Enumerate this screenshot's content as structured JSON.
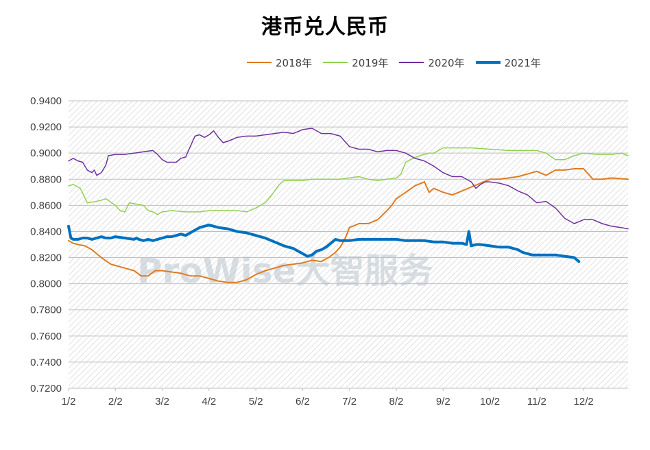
{
  "chart_data": {
    "type": "line",
    "title": "港币兑人民币",
    "xlabel": "",
    "ylabel": "",
    "ylim": [
      0.72,
      0.94
    ],
    "y_ticks": [
      "0.9400",
      "0.9200",
      "0.9000",
      "0.8800",
      "0.8600",
      "0.8400",
      "0.8200",
      "0.8000",
      "0.7800",
      "0.7600",
      "0.7400",
      "0.7200"
    ],
    "x_ticks": [
      "1/2",
      "2/2",
      "3/2",
      "4/2",
      "5/2",
      "6/2",
      "7/2",
      "8/2",
      "9/2",
      "10/2",
      "11/2",
      "12/2"
    ],
    "x_domain": [
      1,
      12.95
    ],
    "legend_position": "top",
    "watermark": "ProWise大智服务",
    "series": [
      {
        "name": "2018年",
        "color": "#E07B20",
        "width": 2,
        "x": [
          1.0,
          1.1,
          1.2,
          1.35,
          1.5,
          1.7,
          1.9,
          2.0,
          2.2,
          2.4,
          2.55,
          2.7,
          2.85,
          3.0,
          3.2,
          3.4,
          3.6,
          3.8,
          4.0,
          4.2,
          4.4,
          4.6,
          4.8,
          5.0,
          5.2,
          5.4,
          5.6,
          5.8,
          6.0,
          6.2,
          6.4,
          6.55,
          6.7,
          6.8,
          6.9,
          7.0,
          7.2,
          7.4,
          7.6,
          7.8,
          7.9,
          8.0,
          8.2,
          8.4,
          8.6,
          8.7,
          8.8,
          9.0,
          9.2,
          9.4,
          9.6,
          9.8,
          10.0,
          10.2,
          10.4,
          10.6,
          10.8,
          11.0,
          11.2,
          11.4,
          11.6,
          11.8,
          12.0,
          12.2,
          12.4,
          12.6,
          12.95
        ],
        "y": [
          0.833,
          0.831,
          0.83,
          0.829,
          0.826,
          0.82,
          0.815,
          0.814,
          0.812,
          0.81,
          0.806,
          0.806,
          0.81,
          0.81,
          0.809,
          0.808,
          0.806,
          0.806,
          0.804,
          0.802,
          0.801,
          0.801,
          0.803,
          0.807,
          0.81,
          0.812,
          0.814,
          0.815,
          0.816,
          0.818,
          0.817,
          0.82,
          0.824,
          0.828,
          0.834,
          0.843,
          0.846,
          0.846,
          0.849,
          0.856,
          0.86,
          0.865,
          0.87,
          0.875,
          0.878,
          0.87,
          0.873,
          0.87,
          0.868,
          0.871,
          0.874,
          0.877,
          0.88,
          0.88,
          0.881,
          0.882,
          0.884,
          0.886,
          0.883,
          0.887,
          0.887,
          0.888,
          0.888,
          0.88,
          0.88,
          0.881,
          0.88
        ]
      },
      {
        "name": "2019年",
        "color": "#92D050",
        "width": 1.5,
        "x": [
          1.0,
          1.1,
          1.25,
          1.4,
          1.6,
          1.8,
          2.0,
          2.1,
          2.2,
          2.3,
          2.45,
          2.6,
          2.7,
          2.8,
          2.9,
          3.0,
          3.2,
          3.5,
          3.8,
          4.0,
          4.2,
          4.4,
          4.6,
          4.8,
          5.0,
          5.2,
          5.3,
          5.4,
          5.5,
          5.6,
          5.8,
          6.0,
          6.2,
          6.5,
          6.8,
          7.0,
          7.2,
          7.4,
          7.6,
          7.8,
          8.0,
          8.1,
          8.2,
          8.3,
          8.5,
          8.7,
          8.8,
          9.0,
          9.3,
          9.6,
          10.0,
          10.4,
          10.8,
          11.0,
          11.2,
          11.4,
          11.6,
          11.8,
          12.0,
          12.3,
          12.6,
          12.8,
          12.95
        ],
        "y": [
          0.875,
          0.876,
          0.873,
          0.862,
          0.863,
          0.865,
          0.86,
          0.856,
          0.855,
          0.862,
          0.861,
          0.86,
          0.856,
          0.855,
          0.853,
          0.855,
          0.856,
          0.855,
          0.855,
          0.856,
          0.856,
          0.856,
          0.856,
          0.855,
          0.858,
          0.862,
          0.866,
          0.871,
          0.876,
          0.879,
          0.879,
          0.879,
          0.88,
          0.88,
          0.88,
          0.881,
          0.882,
          0.88,
          0.879,
          0.88,
          0.881,
          0.884,
          0.893,
          0.895,
          0.898,
          0.9,
          0.9,
          0.904,
          0.904,
          0.904,
          0.903,
          0.902,
          0.902,
          0.902,
          0.9,
          0.895,
          0.895,
          0.898,
          0.9,
          0.899,
          0.899,
          0.9,
          0.898
        ]
      },
      {
        "name": "2020年",
        "color": "#7030A0",
        "width": 1.5,
        "x": [
          1.0,
          1.1,
          1.2,
          1.3,
          1.4,
          1.5,
          1.55,
          1.6,
          1.7,
          1.8,
          1.85,
          2.0,
          2.2,
          2.4,
          2.6,
          2.8,
          2.9,
          3.0,
          3.1,
          3.2,
          3.3,
          3.4,
          3.5,
          3.6,
          3.7,
          3.8,
          3.9,
          4.0,
          4.1,
          4.2,
          4.3,
          4.4,
          4.6,
          4.8,
          5.0,
          5.2,
          5.4,
          5.6,
          5.8,
          6.0,
          6.2,
          6.4,
          6.6,
          6.8,
          7.0,
          7.2,
          7.4,
          7.6,
          7.8,
          8.0,
          8.2,
          8.4,
          8.6,
          8.8,
          9.0,
          9.2,
          9.4,
          9.6,
          9.7,
          9.8,
          9.9,
          10.0,
          10.2,
          10.4,
          10.6,
          10.8,
          11.0,
          11.2,
          11.4,
          11.6,
          11.8,
          12.0,
          12.2,
          12.4,
          12.6,
          12.8,
          12.95
        ],
        "y": [
          0.894,
          0.896,
          0.894,
          0.893,
          0.887,
          0.885,
          0.887,
          0.883,
          0.885,
          0.891,
          0.898,
          0.899,
          0.899,
          0.9,
          0.901,
          0.902,
          0.899,
          0.895,
          0.893,
          0.893,
          0.893,
          0.896,
          0.897,
          0.905,
          0.913,
          0.914,
          0.912,
          0.914,
          0.917,
          0.912,
          0.908,
          0.909,
          0.912,
          0.913,
          0.913,
          0.914,
          0.915,
          0.916,
          0.915,
          0.918,
          0.919,
          0.915,
          0.915,
          0.913,
          0.905,
          0.903,
          0.903,
          0.901,
          0.902,
          0.902,
          0.9,
          0.896,
          0.894,
          0.89,
          0.885,
          0.882,
          0.882,
          0.878,
          0.873,
          0.876,
          0.878,
          0.878,
          0.877,
          0.875,
          0.871,
          0.868,
          0.862,
          0.863,
          0.858,
          0.85,
          0.846,
          0.849,
          0.849,
          0.846,
          0.844,
          0.843,
          0.842
        ]
      },
      {
        "name": "2021年",
        "color": "#0070C0",
        "width": 4,
        "x": [
          1.0,
          1.05,
          1.1,
          1.2,
          1.3,
          1.4,
          1.5,
          1.6,
          1.7,
          1.8,
          1.9,
          2.0,
          2.2,
          2.4,
          2.45,
          2.5,
          2.6,
          2.7,
          2.8,
          2.9,
          3.0,
          3.1,
          3.2,
          3.3,
          3.4,
          3.5,
          3.6,
          3.7,
          3.8,
          3.9,
          4.0,
          4.2,
          4.4,
          4.6,
          4.8,
          5.0,
          5.2,
          5.4,
          5.6,
          5.8,
          6.0,
          6.1,
          6.2,
          6.3,
          6.4,
          6.5,
          6.6,
          6.7,
          6.8,
          6.9,
          7.0,
          7.2,
          7.4,
          7.6,
          7.8,
          8.0,
          8.2,
          8.4,
          8.6,
          8.8,
          9.0,
          9.2,
          9.4,
          9.5,
          9.55,
          9.6,
          9.7,
          9.8,
          10.0,
          10.2,
          10.4,
          10.6,
          10.7,
          10.8,
          10.9,
          11.0,
          11.2,
          11.4,
          11.6,
          11.8,
          11.9
        ],
        "y": [
          0.844,
          0.835,
          0.834,
          0.834,
          0.835,
          0.835,
          0.834,
          0.835,
          0.836,
          0.835,
          0.835,
          0.836,
          0.835,
          0.834,
          0.835,
          0.834,
          0.833,
          0.834,
          0.833,
          0.834,
          0.835,
          0.836,
          0.836,
          0.837,
          0.838,
          0.837,
          0.839,
          0.841,
          0.843,
          0.844,
          0.845,
          0.843,
          0.842,
          0.84,
          0.839,
          0.837,
          0.835,
          0.832,
          0.829,
          0.827,
          0.823,
          0.821,
          0.822,
          0.825,
          0.826,
          0.828,
          0.831,
          0.834,
          0.833,
          0.833,
          0.833,
          0.834,
          0.834,
          0.834,
          0.834,
          0.834,
          0.833,
          0.833,
          0.833,
          0.832,
          0.832,
          0.831,
          0.831,
          0.83,
          0.84,
          0.829,
          0.83,
          0.83,
          0.829,
          0.828,
          0.828,
          0.826,
          0.824,
          0.823,
          0.822,
          0.822,
          0.822,
          0.822,
          0.821,
          0.82,
          0.817
        ]
      }
    ]
  }
}
